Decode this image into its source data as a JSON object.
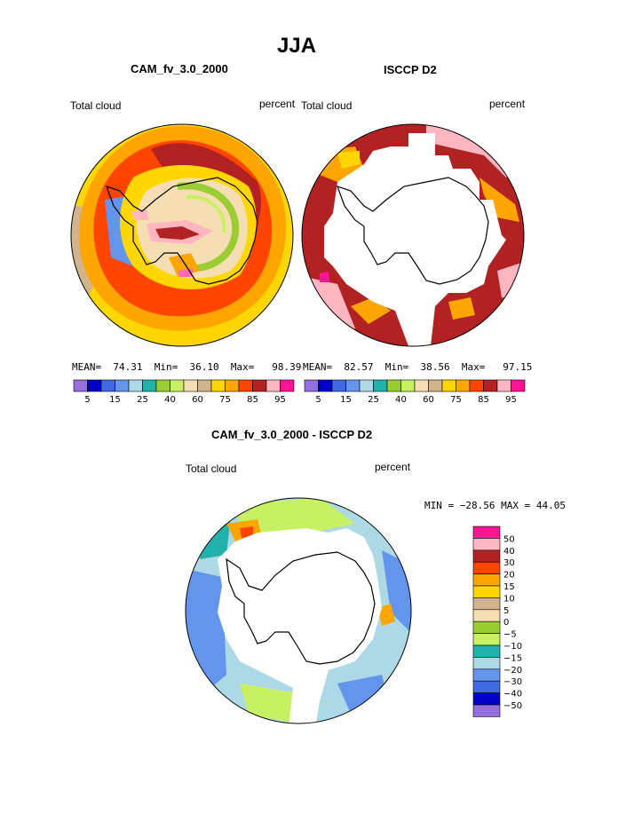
{
  "title": "JJA",
  "panels": [
    {
      "id": "model",
      "name": "CAM_fv_3.0_2000",
      "left_label": "Total cloud",
      "right_label": "percent",
      "stats": {
        "mean_label": "MEAN=",
        "mean": "74.31",
        "min_label": "Min=",
        "min": "36.10",
        "max_label": "Max=",
        "max": "98.39"
      }
    },
    {
      "id": "obs",
      "name": "ISCCP D2",
      "left_label": "Total cloud",
      "right_label": "percent",
      "stats": {
        "mean_label": "MEAN=",
        "mean": "82.57",
        "min_label": "Min=",
        "min": "38.56",
        "max_label": "Max=",
        "max": "97.15"
      }
    }
  ],
  "diff_panel": {
    "name": "CAM_fv_3.0_2000 - ISCCP D2",
    "left_label": "Total cloud",
    "right_label": "percent",
    "minmax": "MIN = −28.56 MAX =  44.05"
  },
  "chart_data": [
    {
      "type": "heatmap",
      "title": "CAM_fv_3.0_2000",
      "subtitle": "Total cloud",
      "units": "percent",
      "projection": "south polar stereographic",
      "legend_levels": [
        5,
        10,
        15,
        20,
        25,
        30,
        40,
        50,
        60,
        70,
        75,
        80,
        85,
        90,
        95
      ],
      "legend_tick_labels": [
        "5",
        "15",
        "25",
        "40",
        "60",
        "75",
        "85",
        "95"
      ],
      "legend_colors": [
        "#9370db",
        "#0000c8",
        "#4169e1",
        "#6495ed",
        "#add8e6",
        "#20b2aa",
        "#9acd32",
        "#c8f064",
        "#f5deb3",
        "#d2b48c",
        "#ffd700",
        "#ffa500",
        "#ff4500",
        "#b22222",
        "#ffb6c1",
        "#ff1493"
      ],
      "stats": {
        "mean": 74.31,
        "min": 36.1,
        "max": 98.39
      }
    },
    {
      "type": "heatmap",
      "title": "ISCCP D2",
      "subtitle": "Total cloud",
      "units": "percent",
      "projection": "south polar stereographic",
      "legend_levels": [
        5,
        10,
        15,
        20,
        25,
        30,
        40,
        50,
        60,
        70,
        75,
        80,
        85,
        90,
        95
      ],
      "legend_tick_labels": [
        "5",
        "15",
        "25",
        "40",
        "60",
        "75",
        "85",
        "95"
      ],
      "legend_colors": [
        "#9370db",
        "#0000c8",
        "#4169e1",
        "#6495ed",
        "#add8e6",
        "#20b2aa",
        "#9acd32",
        "#c8f064",
        "#f5deb3",
        "#d2b48c",
        "#ffd700",
        "#ffa500",
        "#ff4500",
        "#b22222",
        "#ffb6c1",
        "#ff1493"
      ],
      "stats": {
        "mean": 82.57,
        "min": 38.56,
        "max": 97.15
      }
    },
    {
      "type": "heatmap",
      "title": "CAM_fv_3.0_2000 - ISCCP D2",
      "subtitle": "Total cloud",
      "units": "percent",
      "projection": "south polar stereographic",
      "legend_levels": [
        -50,
        -40,
        -30,
        -20,
        -15,
        -10,
        -5,
        0,
        5,
        10,
        15,
        20,
        30,
        40,
        50
      ],
      "legend_tick_labels": [
        "50",
        "40",
        "30",
        "20",
        "15",
        "10",
        "5",
        "0",
        "−5",
        "−10",
        "−15",
        "−20",
        "−30",
        "−40",
        "−50"
      ],
      "legend_colors": [
        "#ff1493",
        "#ffb6c1",
        "#b22222",
        "#ff4500",
        "#ffa500",
        "#ffd700",
        "#d2b48c",
        "#f5deb3",
        "#9acd32",
        "#c8f064",
        "#20b2aa",
        "#add8e6",
        "#6495ed",
        "#4169e1",
        "#0000c8",
        "#9370db"
      ],
      "stats": {
        "min": -28.56,
        "max": 44.05
      }
    }
  ]
}
